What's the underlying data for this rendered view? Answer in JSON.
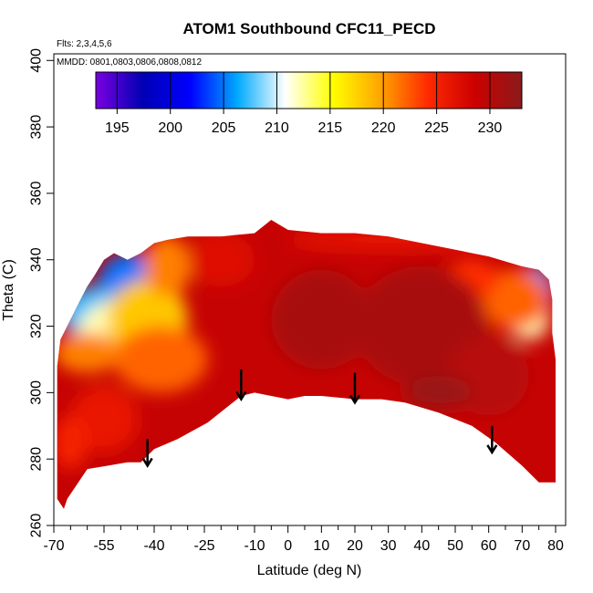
{
  "chart_data": {
    "type": "heatmap",
    "title": "ATOM1 Southbound CFC11_PECD",
    "flights_label": "Flts: 2,3,4,5,6",
    "dates_label": "MMDD: 0801,0803,0806,0808,0812",
    "xlabel": "Latitude (deg N)",
    "ylabel": "Theta (C)",
    "xlim": [
      -70,
      83
    ],
    "ylim": [
      260,
      402
    ],
    "x_ticks": [
      -70,
      -55,
      -40,
      -25,
      -10,
      0,
      10,
      20,
      30,
      40,
      50,
      60,
      70,
      80
    ],
    "x_minor_ticks": [
      -65,
      -60,
      -50,
      -45,
      -35,
      -30,
      -20,
      -15,
      -5,
      5,
      15,
      25,
      35,
      45,
      55,
      65,
      75
    ],
    "y_ticks": [
      260,
      280,
      300,
      320,
      340,
      360,
      380,
      400
    ],
    "colorbar": {
      "min": 193,
      "max": 233,
      "ticks": [
        195,
        200,
        205,
        210,
        215,
        220,
        225,
        230
      ],
      "colors": [
        "#7a00e0",
        "#0000b4",
        "#0000ff",
        "#00aaff",
        "#ffffff",
        "#ffff00",
        "#ffa500",
        "#ff2a00",
        "#cc0000",
        "#8b1a1a"
      ]
    },
    "field": {
      "background_value": 229,
      "top_envelope": [
        [
          -69,
          308
        ],
        [
          -68,
          316
        ],
        [
          -66,
          320
        ],
        [
          -64,
          324
        ],
        [
          -62,
          328
        ],
        [
          -60,
          332
        ],
        [
          -58,
          335
        ],
        [
          -55,
          340
        ],
        [
          -52,
          342
        ],
        [
          -48,
          340
        ],
        [
          -44,
          342
        ],
        [
          -40,
          345
        ],
        [
          -36,
          346
        ],
        [
          -30,
          347
        ],
        [
          -20,
          347
        ],
        [
          -10,
          348
        ],
        [
          -5,
          352
        ],
        [
          0,
          349
        ],
        [
          10,
          348
        ],
        [
          20,
          348
        ],
        [
          30,
          347
        ],
        [
          40,
          345
        ],
        [
          50,
          343
        ],
        [
          60,
          341
        ],
        [
          70,
          338
        ],
        [
          75,
          337
        ],
        [
          78,
          334
        ],
        [
          79,
          328
        ],
        [
          79,
          318
        ],
        [
          80,
          310
        ],
        [
          80,
          290
        ],
        [
          80,
          274
        ]
      ],
      "bottom_envelope": [
        [
          80,
          273
        ],
        [
          75,
          273
        ],
        [
          70,
          278
        ],
        [
          62,
          285
        ],
        [
          55,
          290
        ],
        [
          45,
          294
        ],
        [
          35,
          297
        ],
        [
          28,
          298
        ],
        [
          20,
          298
        ],
        [
          10,
          299
        ],
        [
          5,
          299
        ],
        [
          0,
          298
        ],
        [
          -10,
          300
        ],
        [
          -14,
          299
        ],
        [
          -24,
          291
        ],
        [
          -33,
          286
        ],
        [
          -40,
          283
        ],
        [
          -44,
          279
        ],
        [
          -48,
          279
        ],
        [
          -54,
          278
        ],
        [
          -60,
          277
        ],
        [
          -64,
          271
        ],
        [
          -66,
          268
        ],
        [
          -67,
          265
        ],
        [
          -69,
          268
        ],
        [
          -69,
          308
        ]
      ],
      "features": [
        {
          "x": -46,
          "y": 336,
          "rx": 6,
          "ry": 6,
          "value": 195
        },
        {
          "x": -47,
          "y": 332,
          "rx": 10,
          "ry": 10,
          "value": 205
        },
        {
          "x": -58,
          "y": 324,
          "rx": 10,
          "ry": 8,
          "value": 207
        },
        {
          "x": -50,
          "y": 318,
          "rx": 13,
          "ry": 10,
          "value": 212
        },
        {
          "x": -42,
          "y": 322,
          "rx": 12,
          "ry": 12,
          "value": 218
        },
        {
          "x": -38,
          "y": 310,
          "rx": 14,
          "ry": 10,
          "value": 222
        },
        {
          "x": -60,
          "y": 312,
          "rx": 10,
          "ry": 6,
          "value": 221
        },
        {
          "x": -36,
          "y": 338,
          "rx": 7,
          "ry": 9,
          "value": 221
        },
        {
          "x": 74,
          "y": 330,
          "rx": 5,
          "ry": 8,
          "value": 206
        },
        {
          "x": 72,
          "y": 322,
          "rx": 6,
          "ry": 6,
          "value": 212
        },
        {
          "x": 68,
          "y": 328,
          "rx": 10,
          "ry": 9,
          "value": 222
        },
        {
          "x": 55,
          "y": 334,
          "rx": 8,
          "ry": 6,
          "value": 224
        },
        {
          "x": 30,
          "y": 346,
          "rx": 30,
          "ry": 3,
          "value": 226
        },
        {
          "x": -20,
          "y": 340,
          "rx": 10,
          "ry": 8,
          "value": 227
        },
        {
          "x": 40,
          "y": 320,
          "rx": 20,
          "ry": 18,
          "value": 231
        },
        {
          "x": 10,
          "y": 322,
          "rx": 15,
          "ry": 15,
          "value": 231
        },
        {
          "x": 60,
          "y": 305,
          "rx": 12,
          "ry": 12,
          "value": 230
        },
        {
          "x": 45,
          "y": 300,
          "rx": 10,
          "ry": 5,
          "value": 232
        },
        {
          "x": -55,
          "y": 292,
          "rx": 10,
          "ry": 10,
          "value": 226
        },
        {
          "x": -65,
          "y": 285,
          "rx": 5,
          "ry": 8,
          "value": 225
        }
      ]
    },
    "arrows": [
      {
        "x": -42,
        "y_top": 286,
        "y_bottom": 278
      },
      {
        "x": -14,
        "y_top": 307,
        "y_bottom": 298
      },
      {
        "x": 20,
        "y_top": 306,
        "y_bottom": 297
      },
      {
        "x": 61,
        "y_top": 290,
        "y_bottom": 282
      }
    ]
  }
}
